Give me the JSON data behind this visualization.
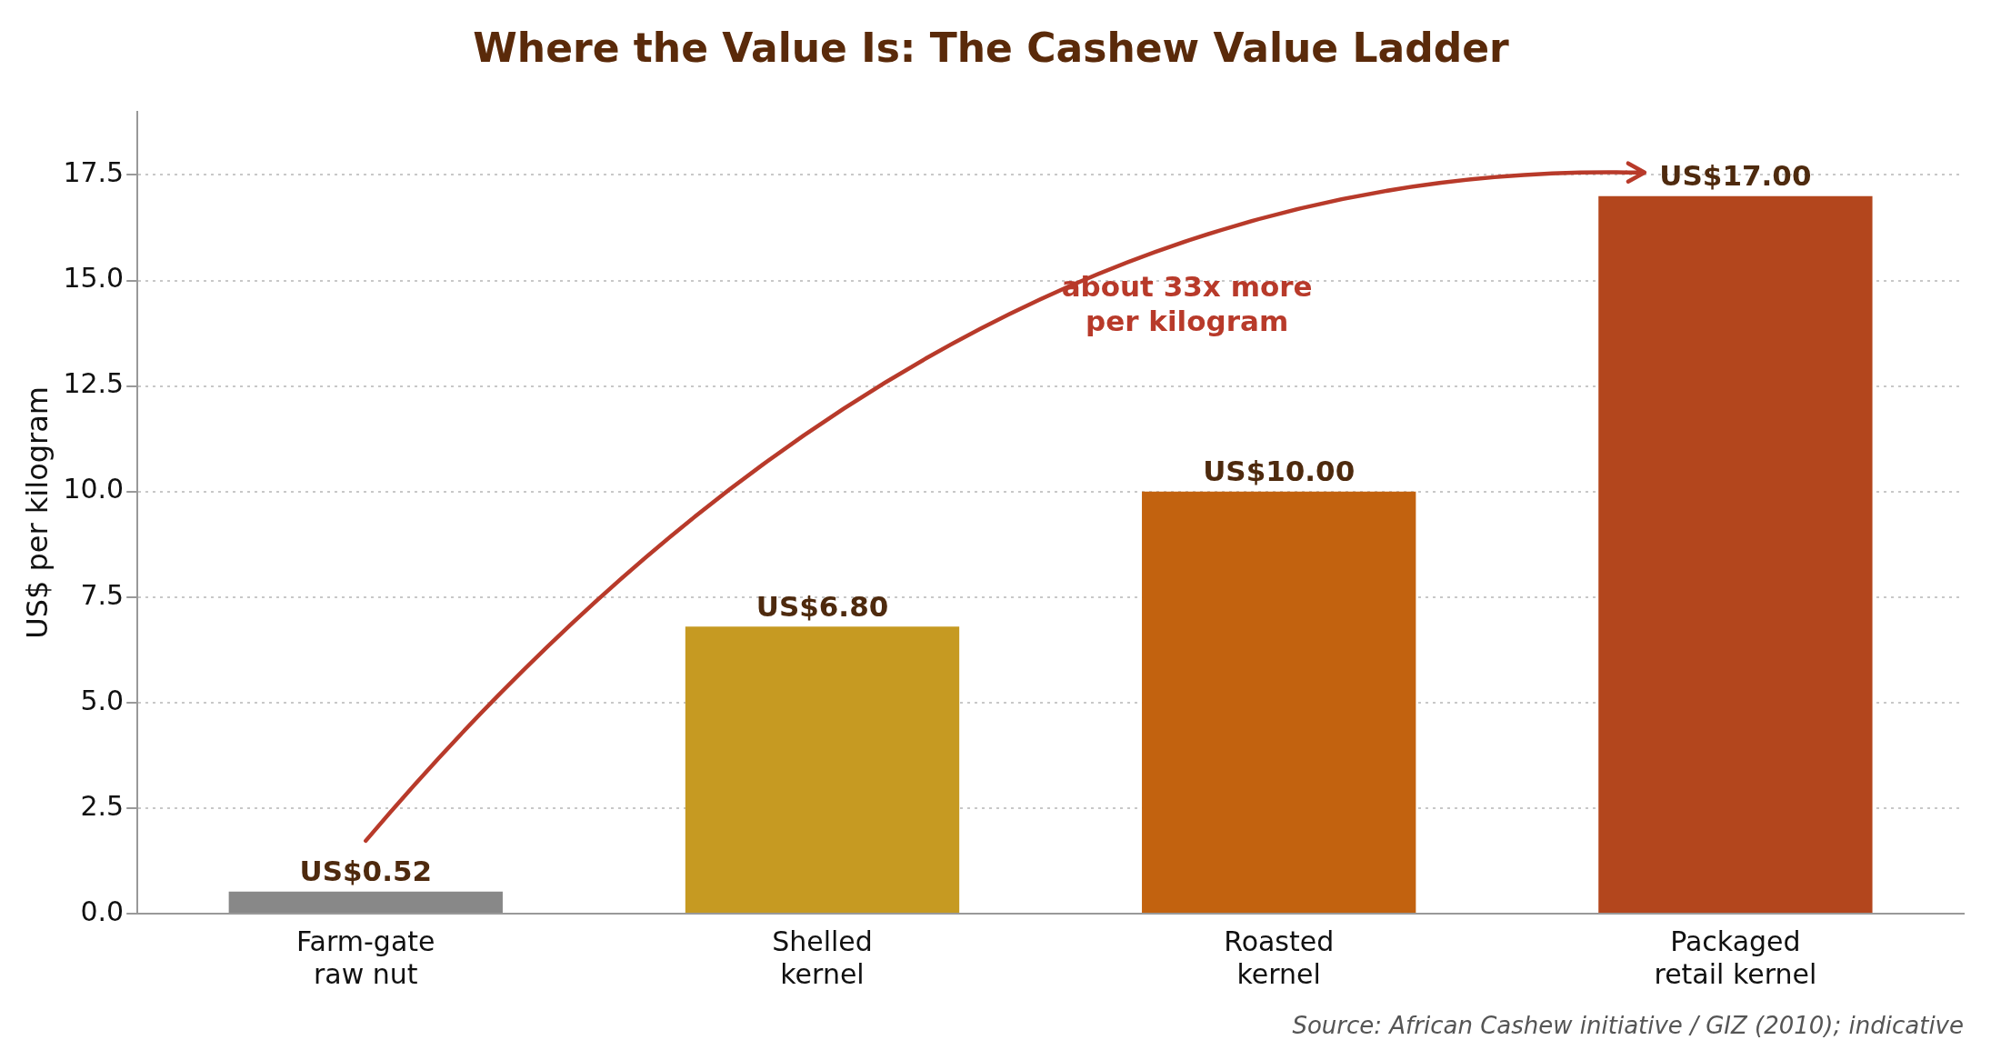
{
  "chart_data": {
    "type": "bar",
    "title": "Where the Value Is: The Cashew Value Ladder",
    "ylabel": "US$ per kilogram",
    "categories": [
      "Farm-gate\nraw nut",
      "Shelled\nkernel",
      "Roasted\nkernel",
      "Packaged\nretail kernel"
    ],
    "values": [
      0.52,
      6.8,
      10,
      17
    ],
    "colors": [
      "#888888",
      "#c69a22",
      "#c2620f",
      "#b3461d"
    ],
    "value_labels": [
      "US$0.52",
      "US$6.80",
      "US$10.00",
      "US$17.00"
    ],
    "ylim": [
      0,
      19
    ],
    "yticks": [
      {
        "value": 0,
        "label": "0.0"
      },
      2.5,
      {
        "value": 5,
        "label": "5.0"
      },
      7.5,
      {
        "value": 10,
        "label": "10.0"
      },
      12.5,
      {
        "value": 15,
        "label": "15.0"
      },
      17.5
    ],
    "grid": "y",
    "legend": false,
    "annotations": [
      "about 33x more\nper kilogram",
      "Source: African Cashew initiative / GIZ (2010); indicative"
    ]
  }
}
